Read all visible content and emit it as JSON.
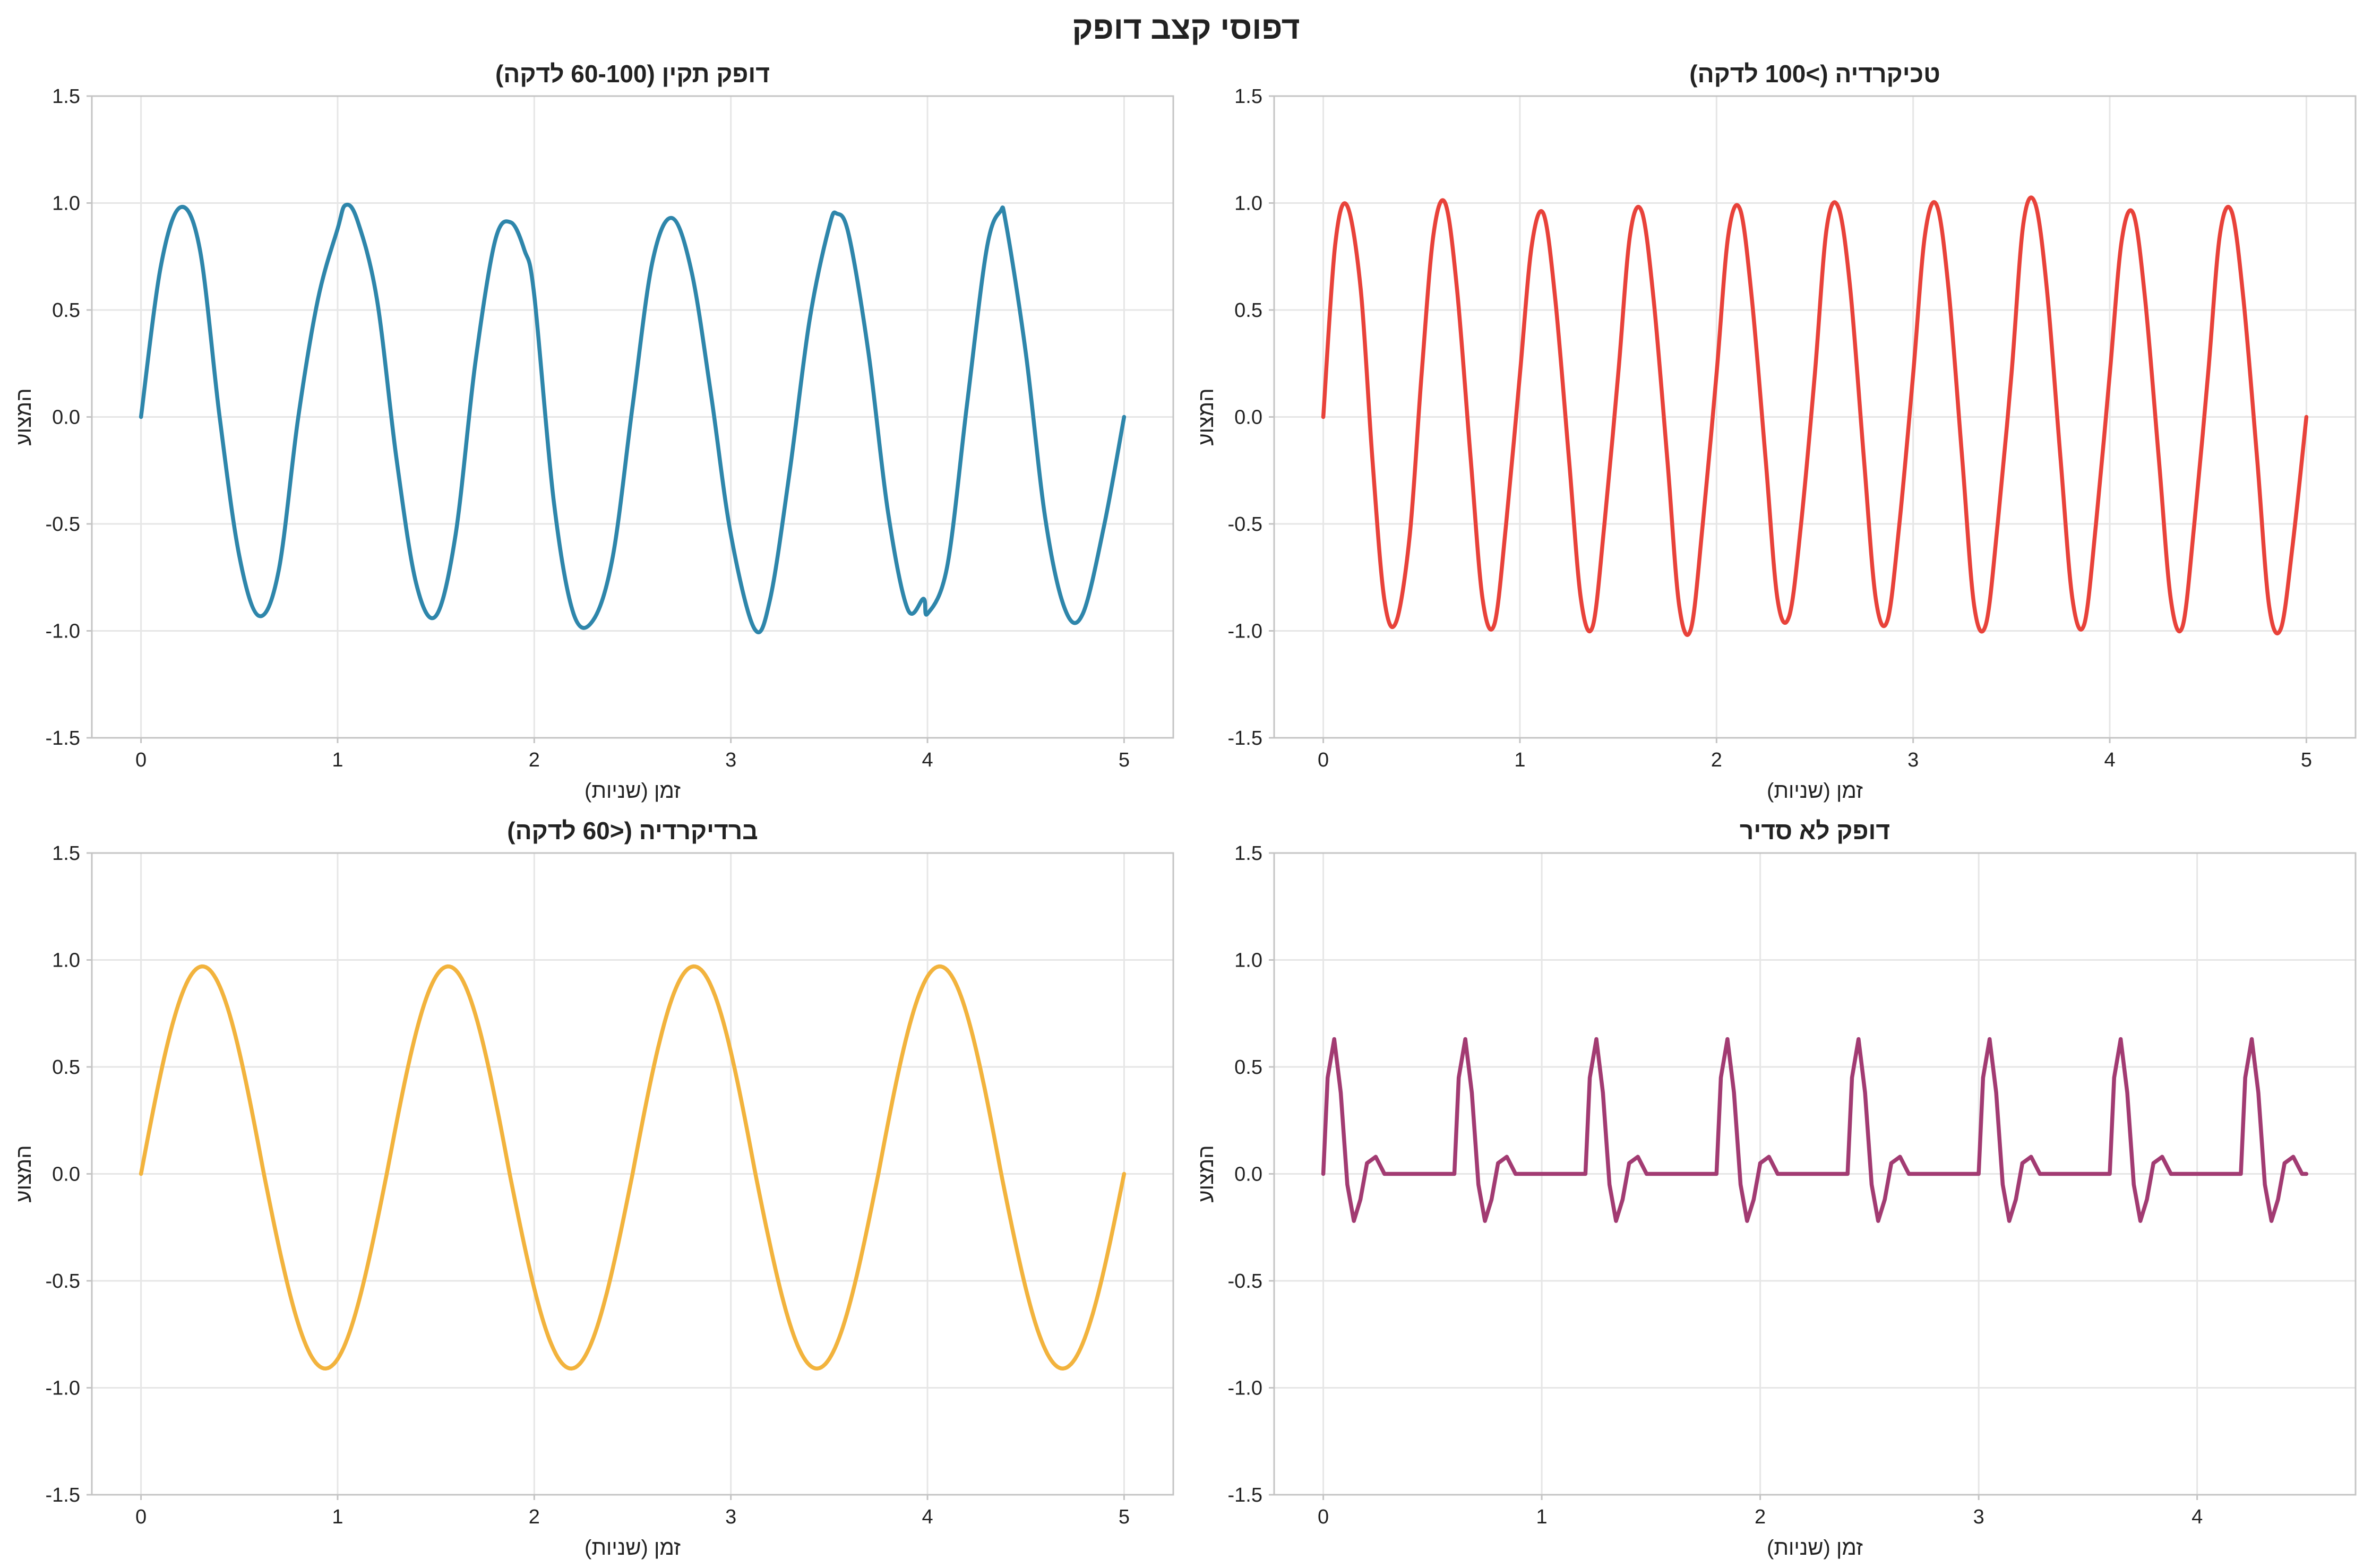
{
  "figure": {
    "title": "דפוסי קצב דופק"
  },
  "chart_data": [
    {
      "type": "line",
      "title": "דופק תקין (60-100 לדקה)",
      "xlabel": "זמן (שניות)",
      "ylabel": "המצוע",
      "xlim": [
        -0.25,
        5.25
      ],
      "ylim": [
        -1.5,
        1.5
      ],
      "xticks": [
        "0",
        "1",
        "2",
        "3",
        "4",
        "5"
      ],
      "yticks": [
        "-1.5",
        "-1.0",
        "-0.5",
        "0.0",
        "0.5",
        "1.0",
        "1.5"
      ],
      "grid": true,
      "color": "#2e86ab",
      "series": [
        {
          "x": [
            0,
            0.1,
            0.2,
            0.3,
            0.4,
            0.5,
            0.6,
            0.7,
            0.8,
            0.9,
            1.0,
            1.04,
            1.1,
            1.2,
            1.3,
            1.4,
            1.5,
            1.6,
            1.7,
            1.8,
            1.88,
            1.95,
            2.0,
            2.1,
            2.2,
            2.3,
            2.4,
            2.5,
            2.6,
            2.7,
            2.8,
            2.9,
            3.0,
            3.12,
            3.2,
            3.3,
            3.4,
            3.5,
            3.54,
            3.6,
            3.7,
            3.8,
            3.9,
            3.98,
            4.0,
            4.1,
            4.2,
            4.3,
            4.37,
            4.4,
            4.5,
            4.6,
            4.7,
            4.79,
            4.9,
            5.0
          ],
          "y": [
            0,
            0.7,
            0.98,
            0.78,
            0.0,
            -0.65,
            -0.93,
            -0.72,
            0.0,
            0.55,
            0.88,
            0.99,
            0.92,
            0.55,
            -0.2,
            -0.78,
            -0.93,
            -0.55,
            0.25,
            0.82,
            0.91,
            0.78,
            0.57,
            -0.4,
            -0.92,
            -0.95,
            -0.65,
            0.05,
            0.72,
            0.93,
            0.68,
            0.1,
            -0.55,
            -0.99,
            -0.85,
            -0.25,
            0.45,
            0.89,
            0.95,
            0.85,
            0.3,
            -0.45,
            -0.9,
            -0.85,
            -0.92,
            -0.7,
            0.05,
            0.78,
            0.96,
            0.9,
            0.3,
            -0.48,
            -0.9,
            -0.92,
            -0.5,
            0.0
          ]
        }
      ]
    },
    {
      "type": "line",
      "title": "טכיקרדיה (>100 לדקה)",
      "xlabel": "זמן (שניות)",
      "ylabel": "המצוע",
      "xlim": [
        -0.25,
        5.25
      ],
      "ylim": [
        -1.5,
        1.5
      ],
      "xticks": [
        "0",
        "1",
        "2",
        "3",
        "4",
        "5"
      ],
      "yticks": [
        "-1.5",
        "-1.0",
        "-0.5",
        "0.0",
        "0.5",
        "1.0",
        "1.5"
      ],
      "grid": true,
      "color": "#e8423a",
      "series": [
        {
          "x": [
            0,
            0.06,
            0.12,
            0.19,
            0.25,
            0.31,
            0.37,
            0.44,
            0.5,
            0.56,
            0.62,
            0.68,
            0.75,
            0.81,
            0.87,
            0.93,
            1.0,
            1.06,
            1.12,
            1.18,
            1.25,
            1.31,
            1.37,
            1.43,
            1.5,
            1.56,
            1.62,
            1.68,
            1.75,
            1.81,
            1.87,
            1.93,
            2.0,
            2.06,
            2.12,
            2.18,
            2.25,
            2.31,
            2.37,
            2.43,
            2.5,
            2.56,
            2.62,
            2.68,
            2.75,
            2.81,
            2.87,
            2.93,
            3.0,
            3.06,
            3.12,
            3.18,
            3.25,
            3.31,
            3.37,
            3.43,
            3.5,
            3.56,
            3.62,
            3.68,
            3.75,
            3.81,
            3.87,
            3.93,
            4.0,
            4.06,
            4.12,
            4.18,
            4.25,
            4.31,
            4.37,
            4.43,
            4.5,
            4.56,
            4.62,
            4.68,
            4.75,
            4.81,
            4.87,
            4.93,
            5.0
          ],
          "y": [
            0,
            0.8,
            0.99,
            0.6,
            -0.2,
            -0.85,
            -0.96,
            -0.55,
            0.2,
            0.85,
            1.0,
            0.6,
            -0.2,
            -0.85,
            -0.97,
            -0.5,
            0.2,
            0.8,
            0.95,
            0.55,
            -0.2,
            -0.85,
            -0.98,
            -0.5,
            0.2,
            0.85,
            0.96,
            0.55,
            -0.2,
            -0.88,
            -0.99,
            -0.5,
            0.2,
            0.85,
            0.97,
            0.55,
            -0.2,
            -0.85,
            -0.93,
            -0.5,
            0.2,
            0.88,
            0.98,
            0.6,
            -0.2,
            -0.85,
            -0.95,
            -0.5,
            0.2,
            0.85,
            0.99,
            0.6,
            -0.2,
            -0.88,
            -0.97,
            -0.5,
            0.2,
            0.9,
            1.0,
            0.6,
            -0.2,
            -0.85,
            -0.97,
            -0.5,
            0.2,
            0.82,
            0.95,
            0.55,
            -0.2,
            -0.85,
            -0.98,
            -0.5,
            0.2,
            0.85,
            0.96,
            0.55,
            -0.2,
            -0.88,
            -0.99,
            -0.6,
            0.0
          ]
        }
      ]
    },
    {
      "type": "line",
      "title": "ברדיקרדיה (<60 לדקה)",
      "xlabel": "זמן (שניות)",
      "ylabel": "המצוע",
      "xlim": [
        -0.25,
        5.25
      ],
      "ylim": [
        -1.5,
        1.5
      ],
      "xticks": [
        "0",
        "1",
        "2",
        "3",
        "4",
        "5"
      ],
      "yticks": [
        "-1.5",
        "-1.0",
        "-0.5",
        "0.0",
        "0.5",
        "1.0",
        "1.5"
      ],
      "grid": true,
      "color": "#f2b33d",
      "series": [
        {
          "fn": "sine",
          "x_start": 0,
          "x_end": 5,
          "frequency_hz": 0.8,
          "peak": 0.97,
          "trough": -0.91
        }
      ]
    },
    {
      "type": "line",
      "title": "דופק לא סדיר",
      "xlabel": "זמן (שניות)",
      "ylabel": "המצוע",
      "xlim": [
        -0.225,
        4.725
      ],
      "ylim": [
        -1.5,
        1.5
      ],
      "xticks": [
        "0",
        "1",
        "2",
        "3",
        "4"
      ],
      "yticks": [
        "-1.5",
        "-1.0",
        "-0.5",
        "0.0",
        "0.5",
        "1.0",
        "1.5"
      ],
      "grid": true,
      "color": "#a23b72",
      "series": [
        {
          "beat_starts": [
            0,
            0.6,
            1.2,
            1.8,
            2.4,
            3.0,
            3.6,
            4.2
          ],
          "beat_shape": {
            "x": [
              0,
              0.02,
              0.05,
              0.08,
              0.11,
              0.14,
              0.17,
              0.2,
              0.24,
              0.28,
              0.31
            ],
            "y": [
              0,
              0.45,
              0.63,
              0.38,
              -0.05,
              -0.22,
              -0.12,
              0.05,
              0.08,
              0.0,
              0.0
            ]
          },
          "x_end": 4.5
        }
      ]
    }
  ]
}
